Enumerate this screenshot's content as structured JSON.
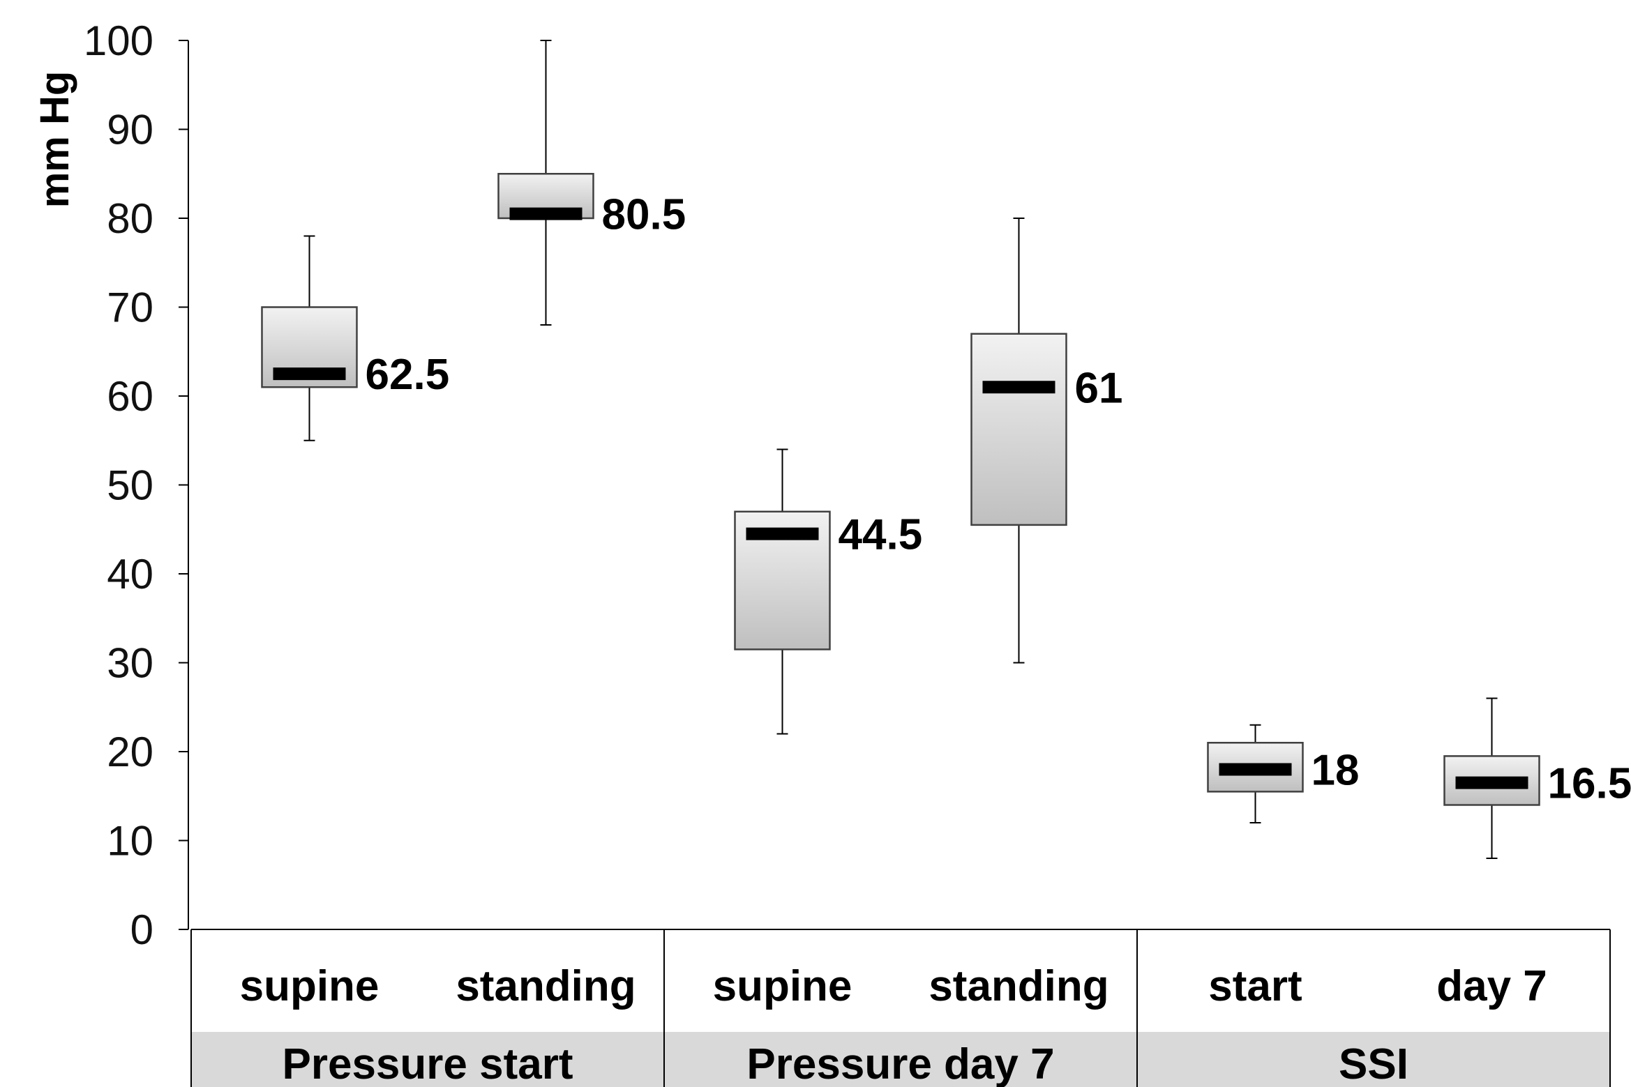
{
  "chart_data": {
    "type": "box",
    "ylabel": "mm Hg",
    "ylim": [
      0,
      100
    ],
    "yticks": [
      "0",
      "10",
      "20",
      "30",
      "40",
      "50",
      "60",
      "70",
      "80",
      "90",
      "100"
    ],
    "grid": false,
    "groups": [
      {
        "label": "Pressure start",
        "boxes": [
          {
            "category": "supine",
            "min": 55,
            "q1": 61,
            "median": 62.5,
            "q3": 70,
            "max": 78,
            "median_label": "62.5"
          },
          {
            "category": "standing",
            "min": 68,
            "q1": 80,
            "median": 80.5,
            "q3": 85,
            "max": 100,
            "median_label": "80.5"
          }
        ]
      },
      {
        "label": "Pressure day 7",
        "boxes": [
          {
            "category": "supine",
            "min": 22,
            "q1": 31.5,
            "median": 44.5,
            "q3": 47,
            "max": 54,
            "median_label": "44.5"
          },
          {
            "category": "standing",
            "min": 30,
            "q1": 45.5,
            "median": 61,
            "q3": 67,
            "max": 80,
            "median_label": "61"
          }
        ]
      },
      {
        "label": "SSI",
        "boxes": [
          {
            "category": "start",
            "min": 12,
            "q1": 15.5,
            "median": 18,
            "q3": 21,
            "max": 23,
            "median_label": "18"
          },
          {
            "category": "day 7",
            "min": 8,
            "q1": 14,
            "median": 16.5,
            "q3": 19.5,
            "max": 26,
            "median_label": "16.5"
          }
        ]
      }
    ],
    "colors": {
      "box_fill_top": "#f2f2f2",
      "box_fill_bottom": "#bfbfbf",
      "box_stroke": "#404040",
      "median": "#000000",
      "group_band": "#d9d9d9"
    }
  }
}
